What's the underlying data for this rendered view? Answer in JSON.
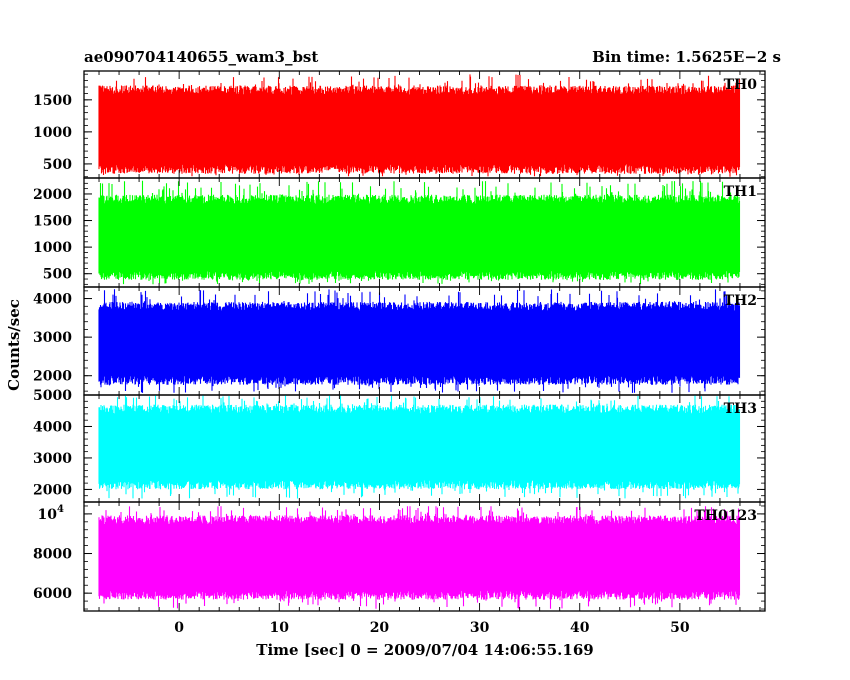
{
  "header": {
    "title": "ae090704140655_wam3_bst",
    "bin_time": "Bin time: 1.5625E−2 s"
  },
  "chart_data": {
    "type": "line",
    "title": "ae090704140655_wam3_bst",
    "subtitle": "Bin time: 1.5625E−2 s",
    "xlabel": "Time [sec] 0 = 2009/07/04 14:06:55.169",
    "ylabel": "Counts/sec",
    "xlim": [
      -9.5,
      58.5
    ],
    "data_xrange": [
      -8.0,
      56.0
    ],
    "bin_time_s": 0.015625,
    "x_ticks": [
      {
        "value": 0,
        "label": "0"
      },
      {
        "value": 10,
        "label": "10"
      },
      {
        "value": 20,
        "label": "20"
      },
      {
        "value": 30,
        "label": "30"
      },
      {
        "value": 40,
        "label": "40"
      },
      {
        "value": 50,
        "label": "50"
      }
    ],
    "grid": false,
    "panels": [
      {
        "name": "TH0",
        "color": "#ff0000",
        "ylim": [
          280,
          1950
        ],
        "band": {
          "low": 420,
          "high": 1650,
          "min": 300,
          "max": 1900
        },
        "y_ticks": [
          {
            "value": 500,
            "label": "500"
          },
          {
            "value": 1000,
            "label": "1000"
          },
          {
            "value": 1500,
            "label": "1500"
          }
        ]
      },
      {
        "name": "TH1",
        "color": "#00ff00",
        "ylim": [
          250,
          2300
        ],
        "band": {
          "low": 470,
          "high": 1900,
          "min": 300,
          "max": 2250
        },
        "y_ticks": [
          {
            "value": 500,
            "label": "500"
          },
          {
            "value": 1000,
            "label": "1000"
          },
          {
            "value": 1500,
            "label": "1500"
          },
          {
            "value": 2000,
            "label": "2000"
          }
        ]
      },
      {
        "name": "TH2",
        "color": "#0000ff",
        "ylim": [
          1500,
          4300
        ],
        "band": {
          "low": 1880,
          "high": 3800,
          "min": 1550,
          "max": 4250
        },
        "y_ticks": [
          {
            "value": 2000,
            "label": "2000"
          },
          {
            "value": 3000,
            "label": "3000"
          },
          {
            "value": 4000,
            "label": "4000"
          }
        ]
      },
      {
        "name": "TH3",
        "color": "#00ffff",
        "ylim": [
          1600,
          5000
        ],
        "band": {
          "low": 2150,
          "high": 4550,
          "min": 1700,
          "max": 5000
        },
        "y_ticks": [
          {
            "value": 2000,
            "label": "2000"
          },
          {
            "value": 3000,
            "label": "3000"
          },
          {
            "value": 4000,
            "label": "4000"
          },
          {
            "value": 5000,
            "label": "5000"
          }
        ]
      },
      {
        "name": "TH0123",
        "color": "#ff00ff",
        "ylim": [
          5100,
          10600
        ],
        "band": {
          "low": 5900,
          "high": 9700,
          "min": 5200,
          "max": 10400
        },
        "y_ticks": [
          {
            "value": 6000,
            "label": "6000"
          },
          {
            "value": 8000,
            "label": "8000"
          },
          {
            "value": 10000,
            "label": "10",
            "sup": "4"
          }
        ]
      }
    ]
  }
}
